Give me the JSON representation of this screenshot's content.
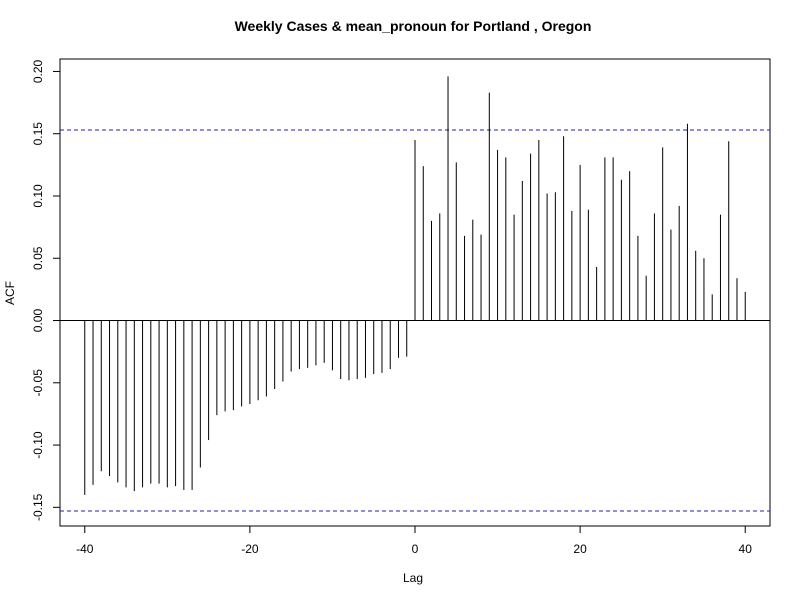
{
  "chart_data": {
    "type": "bar",
    "title": "Weekly Cases & mean_pronoun for Portland , Oregon",
    "xlabel": "Lag",
    "ylabel": "ACF",
    "xlim": [
      -43,
      43
    ],
    "ylim": [
      -0.165,
      0.21
    ],
    "x_ticks": [
      -40,
      -20,
      0,
      20,
      40
    ],
    "x_tick_labels": [
      "-40",
      "-20",
      "0",
      "20",
      "40"
    ],
    "y_ticks": [
      -0.15,
      -0.1,
      -0.05,
      0.0,
      0.05,
      0.1,
      0.15,
      0.2
    ],
    "y_tick_labels": [
      "-0.15",
      "-0.10",
      "-0.05",
      "0.00",
      "0.05",
      "0.10",
      "0.15",
      "0.20"
    ],
    "confidence_bounds": [
      0.153,
      -0.153
    ],
    "lags": [
      -40,
      -39,
      -38,
      -37,
      -36,
      -35,
      -34,
      -33,
      -32,
      -31,
      -30,
      -29,
      -28,
      -27,
      -26,
      -25,
      -24,
      -23,
      -22,
      -21,
      -20,
      -19,
      -18,
      -17,
      -16,
      -15,
      -14,
      -13,
      -12,
      -11,
      -10,
      -9,
      -8,
      -7,
      -6,
      -5,
      -4,
      -3,
      -2,
      -1,
      0,
      1,
      2,
      3,
      4,
      5,
      6,
      7,
      8,
      9,
      10,
      11,
      12,
      13,
      14,
      15,
      16,
      17,
      18,
      19,
      20,
      21,
      22,
      23,
      24,
      25,
      26,
      27,
      28,
      29,
      30,
      31,
      32,
      33,
      34,
      35,
      36,
      37,
      38,
      39,
      40
    ],
    "values": [
      -0.14,
      -0.132,
      -0.121,
      -0.125,
      -0.13,
      -0.134,
      -0.137,
      -0.134,
      -0.131,
      -0.131,
      -0.134,
      -0.133,
      -0.136,
      -0.136,
      -0.118,
      -0.096,
      -0.076,
      -0.073,
      -0.072,
      -0.069,
      -0.067,
      -0.064,
      -0.061,
      -0.055,
      -0.049,
      -0.041,
      -0.039,
      -0.038,
      -0.036,
      -0.034,
      -0.04,
      -0.047,
      -0.048,
      -0.047,
      -0.046,
      -0.043,
      -0.042,
      -0.039,
      -0.03,
      -0.029,
      0.145,
      0.124,
      0.08,
      0.086,
      0.196,
      0.127,
      0.068,
      0.081,
      0.069,
      0.183,
      0.137,
      0.131,
      0.085,
      0.112,
      0.134,
      0.145,
      0.102,
      0.103,
      0.148,
      0.088,
      0.125,
      0.089,
      0.043,
      0.131,
      0.131,
      0.113,
      0.12,
      0.068,
      0.036,
      0.086,
      0.139,
      0.073,
      0.092,
      0.158,
      0.056,
      0.05,
      0.021,
      0.085,
      0.144,
      0.034,
      0.023
    ],
    "grid": false,
    "colors": {
      "bars": "#000000",
      "ci": "#2222aa"
    }
  }
}
